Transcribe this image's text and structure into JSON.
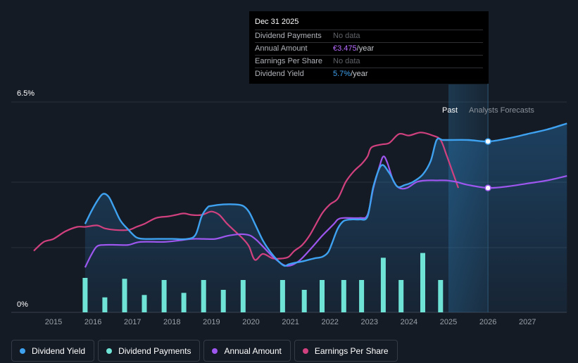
{
  "chart_data": {
    "type": "line",
    "y_axis": {
      "top_label": "6.5%",
      "bottom_label": "0%",
      "ylim": [
        0,
        6.5
      ]
    },
    "x_axis": {
      "ticks": [
        "2015",
        "2016",
        "2017",
        "2018",
        "2019",
        "2020",
        "2021",
        "2022",
        "2023",
        "2024",
        "2025",
        "2026",
        "2027"
      ]
    },
    "past_label": "Past",
    "forecast_label": "Analysts Forecasts",
    "highlight_year": 2026.0,
    "forecast_start": 2025.0,
    "series": [
      {
        "name": "Dividend Yield",
        "key": "yield",
        "color": "#3ea2f0",
        "x": [
          2015.8,
          2015.95,
          2016.1,
          2016.25,
          2016.4,
          2016.55,
          2016.7,
          2016.9,
          2017.1,
          2017.3,
          2017.6,
          2018.0,
          2018.4,
          2018.6,
          2018.75,
          2018.9,
          2019.0,
          2019.3,
          2019.6,
          2019.8,
          2019.95,
          2020.1,
          2020.3,
          2020.5,
          2020.7,
          2020.85,
          2020.95,
          2021.1,
          2021.3,
          2021.6,
          2021.8,
          2021.95,
          2022.05,
          2022.2,
          2022.35,
          2022.55,
          2022.75,
          2022.95,
          2023.1,
          2023.3,
          2023.5,
          2023.7,
          2023.9,
          2024.1,
          2024.35,
          2024.55,
          2024.7,
          2024.85,
          2025.0,
          2025.5,
          2026.0,
          2026.5,
          2027.0,
          2027.5,
          2028.0
        ],
        "y": [
          2.95,
          3.35,
          3.7,
          3.95,
          3.85,
          3.45,
          3.05,
          2.75,
          2.5,
          2.45,
          2.45,
          2.45,
          2.45,
          2.6,
          3.2,
          3.5,
          3.55,
          3.6,
          3.6,
          3.55,
          3.35,
          2.95,
          2.4,
          2.0,
          1.7,
          1.55,
          1.6,
          1.65,
          1.7,
          1.8,
          1.85,
          2.0,
          2.3,
          2.8,
          3.05,
          3.1,
          3.1,
          3.2,
          4.2,
          4.9,
          4.65,
          4.2,
          4.25,
          4.35,
          4.6,
          5.05,
          5.75,
          5.75,
          5.75,
          5.75,
          5.7,
          5.8,
          5.95,
          6.1,
          6.3
        ]
      },
      {
        "name": "Dividend Payments",
        "key": "payments",
        "color": "#6fe3d6",
        "kind": "bars",
        "x": [
          2015.8,
          2016.3,
          2016.8,
          2017.3,
          2017.8,
          2018.3,
          2018.8,
          2019.3,
          2019.8,
          2020.8,
          2021.35,
          2021.8,
          2022.35,
          2022.8,
          2023.35,
          2023.8,
          2024.35,
          2024.8
        ],
        "y": [
          1.15,
          0.5,
          1.12,
          0.58,
          1.08,
          0.65,
          1.08,
          0.75,
          1.08,
          1.08,
          0.75,
          1.08,
          1.08,
          1.08,
          1.82,
          1.08,
          1.98,
          1.08
        ]
      },
      {
        "name": "Annual Amount",
        "key": "amount",
        "color": "#9d56ee",
        "x": [
          2015.8,
          2015.95,
          2016.1,
          2016.3,
          2016.6,
          2016.9,
          2017.2,
          2017.8,
          2018.2,
          2018.5,
          2018.8,
          2019.1,
          2019.4,
          2019.65,
          2019.85,
          2020.0,
          2020.15,
          2020.3,
          2020.6,
          2020.9,
          2021.2,
          2021.5,
          2021.8,
          2022.1,
          2022.2,
          2022.35,
          2022.75,
          2022.95,
          2023.1,
          2023.25,
          2023.35,
          2023.45,
          2023.6,
          2023.75,
          2023.95,
          2024.2,
          2024.45,
          2024.7,
          2024.95,
          2025.2,
          2025.5,
          2026.0,
          2026.5,
          2027.0,
          2027.5,
          2028.0
        ],
        "y": [
          1.5,
          1.9,
          2.2,
          2.25,
          2.25,
          2.25,
          2.35,
          2.35,
          2.4,
          2.45,
          2.45,
          2.45,
          2.55,
          2.6,
          2.6,
          2.55,
          2.4,
          2.2,
          1.8,
          1.55,
          1.7,
          2.1,
          2.55,
          2.95,
          3.1,
          3.15,
          3.15,
          3.25,
          4.15,
          4.85,
          5.2,
          5.0,
          4.4,
          4.15,
          4.15,
          4.35,
          4.4,
          4.4,
          4.4,
          4.35,
          4.25,
          4.15,
          4.2,
          4.3,
          4.4,
          4.55
        ]
      },
      {
        "name": "Earnings Per Share",
        "key": "eps",
        "color": "#d1417f",
        "x": [
          2014.5,
          2014.75,
          2015.0,
          2015.3,
          2015.6,
          2015.8,
          2016.1,
          2016.3,
          2016.55,
          2016.9,
          2017.1,
          2017.3,
          2017.6,
          2017.9,
          2018.1,
          2018.3,
          2018.5,
          2018.75,
          2018.95,
          2019.05,
          2019.2,
          2019.4,
          2019.6,
          2019.8,
          2019.95,
          2020.1,
          2020.3,
          2020.55,
          2020.8,
          2020.95,
          2021.1,
          2021.3,
          2021.5,
          2021.8,
          2022.0,
          2022.2,
          2022.4,
          2022.6,
          2022.8,
          2022.95,
          2023.05,
          2023.3,
          2023.5,
          2023.75,
          2024.0,
          2024.3,
          2024.6,
          2024.8,
          2024.95,
          2025.1,
          2025.25
        ],
        "y": [
          2.05,
          2.35,
          2.45,
          2.7,
          2.85,
          2.85,
          2.9,
          2.8,
          2.75,
          2.75,
          2.85,
          2.95,
          3.15,
          3.2,
          3.25,
          3.3,
          3.25,
          3.25,
          3.35,
          3.35,
          3.25,
          2.95,
          2.7,
          2.45,
          2.2,
          1.75,
          1.95,
          1.8,
          1.8,
          1.85,
          2.05,
          2.25,
          2.6,
          3.3,
          3.6,
          3.8,
          4.35,
          4.7,
          4.95,
          5.2,
          5.5,
          5.6,
          5.65,
          5.95,
          5.9,
          6.0,
          5.9,
          5.75,
          5.25,
          4.7,
          4.15
        ]
      }
    ],
    "tooltip": {
      "date": "Dec 31 2025",
      "rows": [
        {
          "label": "Dividend Payments",
          "value": "No data",
          "unit": ""
        },
        {
          "label": "Annual Amount",
          "value": "€3.475",
          "unit": "/year"
        },
        {
          "label": "Earnings Per Share",
          "value": "No data",
          "unit": ""
        },
        {
          "label": "Dividend Yield",
          "value": "5.7%",
          "unit": "/year"
        }
      ]
    }
  },
  "legend": [
    {
      "label": "Dividend Yield",
      "color": "#3ea2f0"
    },
    {
      "label": "Dividend Payments",
      "color": "#6fe3d6"
    },
    {
      "label": "Annual Amount",
      "color": "#9d56ee"
    },
    {
      "label": "Earnings Per Share",
      "color": "#d1417f"
    }
  ]
}
